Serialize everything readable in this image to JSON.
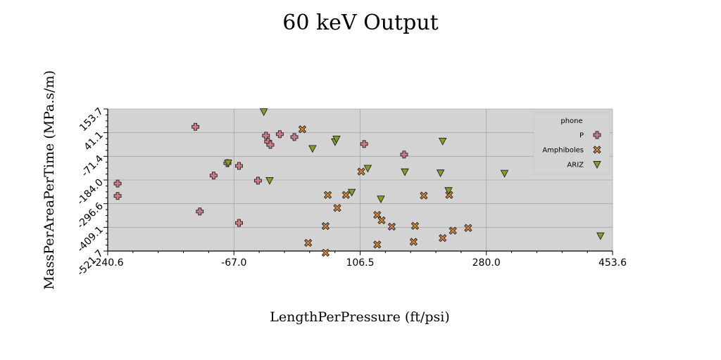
{
  "chart_data": {
    "type": "scatter",
    "title": "60 keV Output",
    "xlabel": "LengthPerPressure (ft/psi)",
    "ylabel": "MassPerAreaPerTime (MPa.s/m)",
    "xlim": [
      -240.6,
      453.6
    ],
    "ylim": [
      -521.7,
      153.7
    ],
    "x_ticks": [
      "-240.6",
      "-67.0",
      "106.5",
      "280.0",
      "453.6"
    ],
    "y_ticks": [
      "-521.7",
      "-409.1",
      "-296.6",
      "-184.0",
      "-71.4",
      "41.1",
      "153.7"
    ],
    "grid": true,
    "legend": {
      "title": "phone",
      "placement": "top-right"
    },
    "colors": {
      "P": "#c97b86",
      "Amphiboles": "#d4862c",
      "ARIZ": "#7fa027",
      "plot_bg": "#d3d3d3"
    },
    "series": [
      {
        "name": "P",
        "marker": "plus",
        "points": [
          [
            -120,
            69
          ],
          [
            -227,
            -201
          ],
          [
            -227,
            -260
          ],
          [
            -114,
            -334
          ],
          [
            -95,
            -163
          ],
          [
            -76,
            -104
          ],
          [
            -60,
            -117
          ],
          [
            -60,
            -388
          ],
          [
            -34,
            -187
          ],
          [
            -23,
            27
          ],
          [
            -20,
            -2
          ],
          [
            -17,
            -17
          ],
          [
            -4,
            34
          ],
          [
            16,
            20
          ],
          [
            112,
            -13
          ],
          [
            167,
            -63
          ]
        ]
      },
      {
        "name": "Amphiboles",
        "marker": "x",
        "points": [
          [
            27,
            57
          ],
          [
            62,
            -255
          ],
          [
            75,
            -317
          ],
          [
            59,
            -403
          ],
          [
            35,
            -483
          ],
          [
            59,
            -530
          ],
          [
            87,
            -255
          ],
          [
            108,
            -144
          ],
          [
            130,
            -350
          ],
          [
            136,
            -376
          ],
          [
            150,
            -406
          ],
          [
            130,
            -491
          ],
          [
            182,
            -402
          ],
          [
            180,
            -478
          ],
          [
            194,
            -258
          ],
          [
            220,
            -460
          ],
          [
            229,
            -255
          ],
          [
            234,
            -425
          ],
          [
            255,
            -412
          ]
        ]
      },
      {
        "name": "ARIZ",
        "marker": "triangle",
        "points": [
          [
            -26,
            140
          ],
          [
            -18,
            -187
          ],
          [
            -75,
            -104
          ],
          [
            41,
            -35
          ],
          [
            72,
            -3
          ],
          [
            74,
            10
          ],
          [
            95,
            -243
          ],
          [
            117,
            -129
          ],
          [
            135,
            -275
          ],
          [
            168,
            -146
          ],
          [
            217,
            -151
          ],
          [
            228,
            -235
          ],
          [
            220,
            0
          ],
          [
            305,
            -153
          ],
          [
            437,
            -450
          ]
        ]
      }
    ]
  }
}
